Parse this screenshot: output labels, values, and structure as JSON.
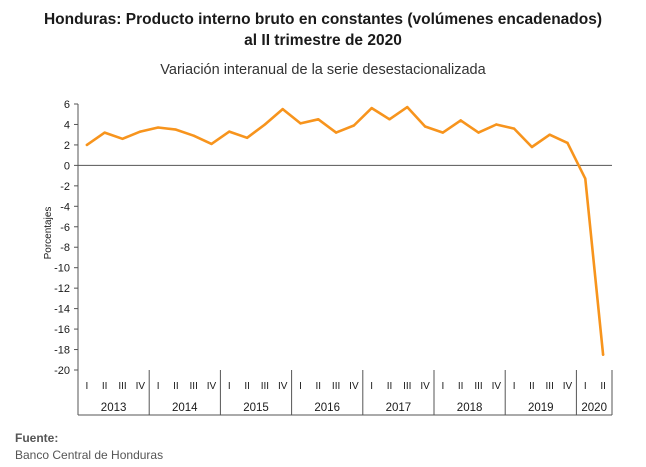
{
  "title_line1": "Honduras: Producto interno bruto en constantes (volúmenes encadenados)",
  "title_line2": "al II trimestre de 2020",
  "subtitle": "Variación interanual de la serie desestacionalizada",
  "source_label": "Fuente:",
  "source_text": "Banco Central de Honduras",
  "colors": {
    "line": "#F7941D",
    "axis": "#555555",
    "text": "#1a1a1a"
  },
  "chart_data": {
    "type": "line",
    "ylabel": "Porcentajes",
    "ylim": [
      -20,
      6
    ],
    "yticks": [
      6,
      4,
      2,
      0,
      -2,
      -4,
      -6,
      -8,
      -10,
      -12,
      -14,
      -16,
      -18,
      -20
    ],
    "grid": false,
    "quarter_labels": [
      "I",
      "II",
      "III",
      "IV",
      "I",
      "II",
      "III",
      "IV",
      "I",
      "II",
      "III",
      "IV",
      "I",
      "II",
      "III",
      "IV",
      "I",
      "II",
      "III",
      "IV",
      "I",
      "II",
      "III",
      "IV",
      "I",
      "II",
      "III",
      "IV",
      "I",
      "II"
    ],
    "years": [
      {
        "label": "2013",
        "quarters": 4
      },
      {
        "label": "2014",
        "quarters": 4
      },
      {
        "label": "2015",
        "quarters": 4
      },
      {
        "label": "2016",
        "quarters": 4
      },
      {
        "label": "2017",
        "quarters": 4
      },
      {
        "label": "2018",
        "quarters": 4
      },
      {
        "label": "2019",
        "quarters": 4
      },
      {
        "label": "2020",
        "quarters": 2
      }
    ],
    "series": [
      {
        "values": [
          2.0,
          3.2,
          2.6,
          3.3,
          3.7,
          3.5,
          2.9,
          2.1,
          3.3,
          2.7,
          4.0,
          5.5,
          4.1,
          4.5,
          3.2,
          3.9,
          5.6,
          4.5,
          5.7,
          3.8,
          3.2,
          4.4,
          3.2,
          4.0,
          3.6,
          1.8,
          3.0,
          2.2,
          -1.3,
          -18.5
        ]
      }
    ]
  }
}
